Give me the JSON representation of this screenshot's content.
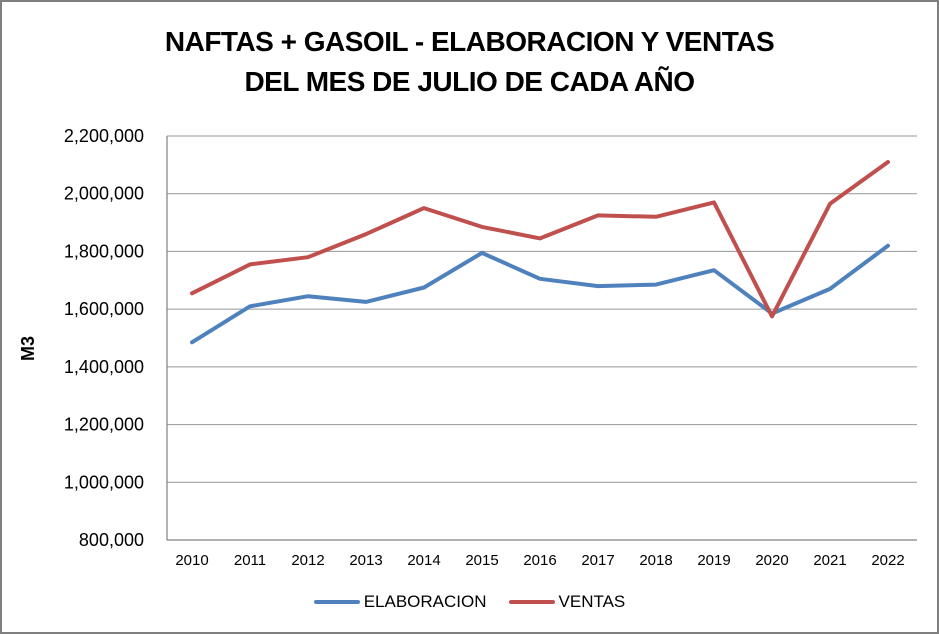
{
  "title": {
    "line1": "NAFTAS + GASOIL - ELABORACION Y VENTAS",
    "line2": "DEL MES DE JULIO DE CADA AÑO"
  },
  "colors": {
    "elaboracion": "#4F81BD",
    "ventas": "#C0504D",
    "gridline": "#969696",
    "axis": "#808080",
    "frame_border": "#7F7F7F",
    "background": "#FFFFFF",
    "text": "#000000"
  },
  "chart_data": {
    "type": "line",
    "title": "NAFTAS + GASOIL - ELABORACION Y VENTAS DEL MES DE JULIO DE CADA AÑO",
    "categories": [
      "2010",
      "2011",
      "2012",
      "2013",
      "2014",
      "2015",
      "2016",
      "2017",
      "2018",
      "2019",
      "2020",
      "2021",
      "2022"
    ],
    "series": [
      {
        "name": "ELABORACION",
        "color": "#4F81BD",
        "values": [
          1485000,
          1610000,
          1645000,
          1625000,
          1675000,
          1795000,
          1705000,
          1680000,
          1685000,
          1735000,
          1585000,
          1670000,
          1820000
        ]
      },
      {
        "name": "VENTAS",
        "color": "#C0504D",
        "values": [
          1655000,
          1755000,
          1780000,
          1860000,
          1950000,
          1885000,
          1845000,
          1925000,
          1920000,
          1970000,
          1575000,
          1965000,
          2110000
        ]
      }
    ],
    "xlabel": "",
    "ylabel": "M3",
    "ylim": [
      800000,
      2200000
    ],
    "ytick_step": 200000,
    "ytick_labels": [
      "800,000",
      "1,000,000",
      "1,200,000",
      "1,400,000",
      "1,600,000",
      "1,800,000",
      "2,000,000",
      "2,200,000"
    ],
    "grid": true,
    "legend_position": "bottom"
  }
}
